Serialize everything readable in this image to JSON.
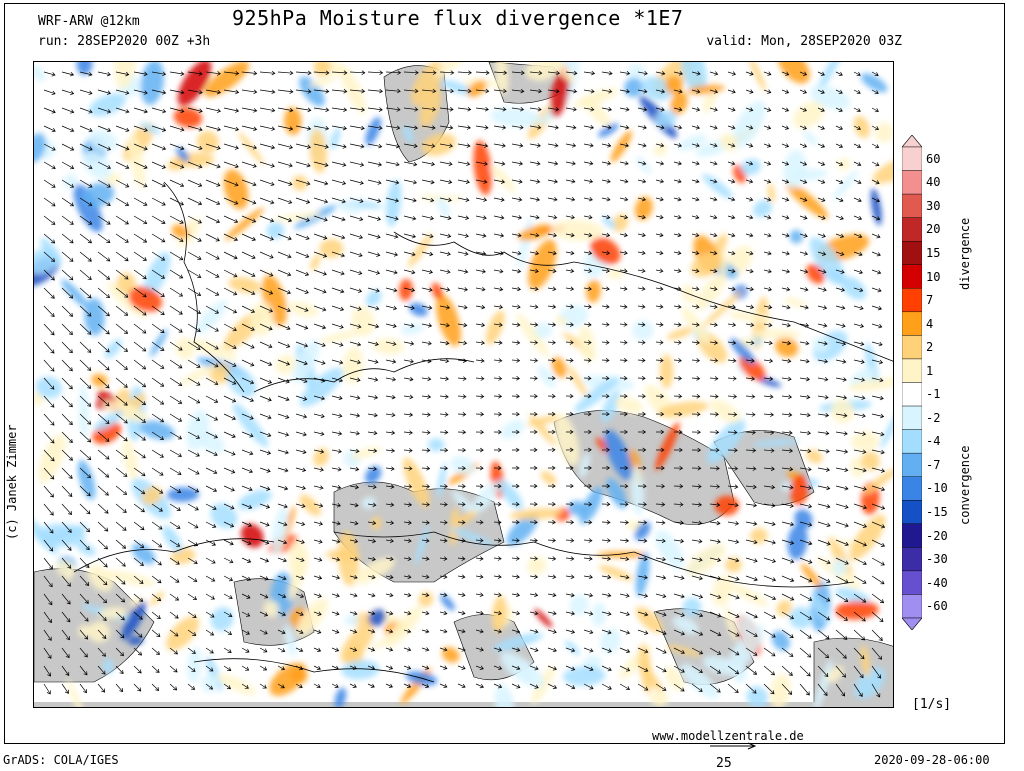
{
  "header": {
    "model": "WRF-ARW @12km",
    "title": "925hPa Moisture flux divergence *1E7",
    "run": "run: 28SEP2020 00Z +3h",
    "valid": "valid: Mon, 28SEP2020 03Z"
  },
  "credit": "(c) Janek Zimmer",
  "legend": {
    "labels": [
      "60",
      "40",
      "30",
      "20",
      "15",
      "10",
      "7",
      "4",
      "2",
      "1",
      "-1",
      "-2",
      "-4",
      "-7",
      "-10",
      "-15",
      "-20",
      "-30",
      "-40",
      "-60"
    ],
    "colors": [
      "#f8d0d0",
      "#f29090",
      "#e05a50",
      "#c02828",
      "#a01010",
      "#d40000",
      "#ff4000",
      "#ff9f1a",
      "#ffd27a",
      "#fff4c8",
      "#ffffff",
      "#d8f4ff",
      "#a4deff",
      "#62b0f2",
      "#3a84e6",
      "#1550c4",
      "#201890",
      "#3d2ca8",
      "#6650d0",
      "#a08ef0"
    ],
    "divergence_label": "divergence",
    "convergence_label": "convergence",
    "unit": "[1/s]"
  },
  "footer": {
    "website": "www.modellzentrale.de",
    "software": "GrADS: COLA/IGES",
    "timestamp": "2020-09-28-06:00",
    "ref_vector_value": "25"
  }
}
